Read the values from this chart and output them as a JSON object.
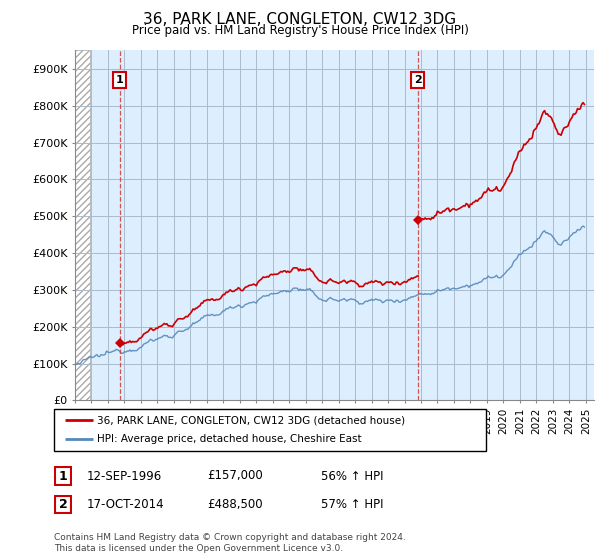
{
  "title": "36, PARK LANE, CONGLETON, CW12 3DG",
  "subtitle": "Price paid vs. HM Land Registry's House Price Index (HPI)",
  "legend_line1": "36, PARK LANE, CONGLETON, CW12 3DG (detached house)",
  "legend_line2": "HPI: Average price, detached house, Cheshire East",
  "transaction1_date": "12-SEP-1996",
  "transaction1_price": 157000,
  "transaction1_hpi": "56% ↑ HPI",
  "transaction2_date": "17-OCT-2014",
  "transaction2_price": 488500,
  "transaction2_hpi": "57% ↑ HPI",
  "footnote": "Contains HM Land Registry data © Crown copyright and database right 2024.\nThis data is licensed under the Open Government Licence v3.0.",
  "red_color": "#cc0000",
  "blue_color": "#5588bb",
  "vline_color": "#cc4444",
  "bg_color": "#ddeeff",
  "grid_color": "#aabbcc",
  "ylim": [
    0,
    950000
  ],
  "yticks": [
    0,
    100000,
    200000,
    300000,
    400000,
    500000,
    600000,
    700000,
    800000,
    900000
  ],
  "ytick_labels": [
    "£0",
    "£100K",
    "£200K",
    "£300K",
    "£400K",
    "£500K",
    "£600K",
    "£700K",
    "£800K",
    "£900K"
  ],
  "t1_year": 1996.708,
  "t2_year": 2014.792,
  "t1_price": 157000,
  "t2_price": 488500
}
